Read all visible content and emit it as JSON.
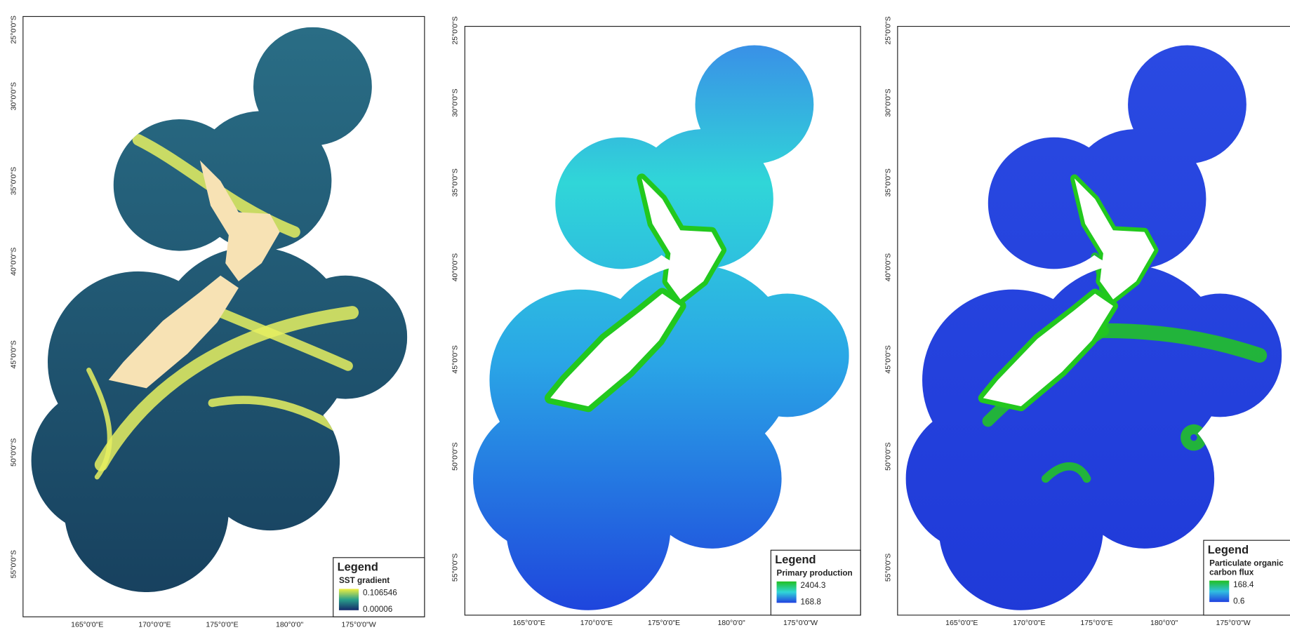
{
  "panels": [
    {
      "lat_labels": [
        "25°0'0\"S",
        "30°0'0\"S",
        "35°0'0\"S",
        "40°0'0\"S",
        "45°0'0\"S",
        "50°0'0\"S",
        "55°0'0\"S"
      ],
      "lon_labels": [
        "165°0'0\"E",
        "170°0'0\"E",
        "175°0'0\"E",
        "180°0'0\"",
        "175°0'0\"W"
      ],
      "legend": {
        "heading": "Legend",
        "title": [
          "SST gradient"
        ],
        "max": "0.106546",
        "min": "0.00006"
      }
    },
    {
      "lat_labels": [
        "25°0'0\"S",
        "30°0'0\"S",
        "35°0'0\"S",
        "40°0'0\"S",
        "45°0'0\"S",
        "50°0'0\"S",
        "55°0'0\"S"
      ],
      "lon_labels": [
        "165°0'0\"E",
        "170°0'0\"E",
        "175°0'0\"E",
        "180°0'0\"",
        "175°0'0\"W"
      ],
      "legend": {
        "heading": "Legend",
        "title": [
          "Primary production"
        ],
        "max": "2404.3",
        "min": "168.8"
      }
    },
    {
      "lat_labels": [
        "25°0'0\"S",
        "30°0'0\"S",
        "35°0'0\"S",
        "40°0'0\"S",
        "45°0'0\"S",
        "50°0'0\"S",
        "55°0'0\"S"
      ],
      "lon_labels": [
        "165°0'0\"E",
        "170°0'0\"E",
        "175°0'0\"E",
        "180°0'0\"",
        "175°0'0\"W"
      ],
      "legend": {
        "heading": "Legend",
        "title": [
          "Particulate organic",
          "carbon flux"
        ],
        "max": "168.4",
        "min": "0.6"
      }
    }
  ]
}
